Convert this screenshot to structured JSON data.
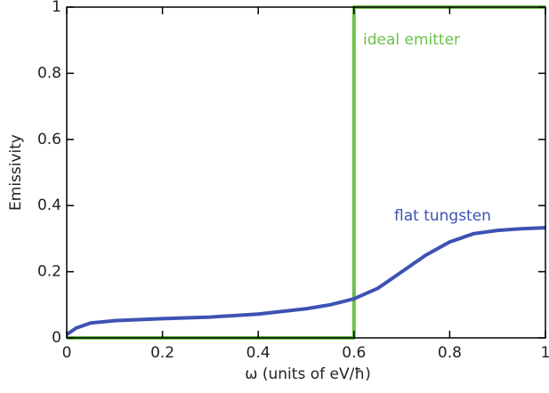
{
  "chart_data": {
    "type": "line",
    "xlabel": "ω (units of eV/ħ)",
    "ylabel": "Emissivity",
    "xlim": [
      0,
      1
    ],
    "ylim": [
      0,
      1
    ],
    "xticks": [
      0,
      0.2,
      0.4,
      0.6,
      0.8,
      1
    ],
    "yticks": [
      0,
      0.2,
      0.4,
      0.6,
      0.8,
      1
    ],
    "series": [
      {
        "name": "ideal emitter",
        "color": "#6cc04a",
        "x": [
          0,
          0.6,
          0.6,
          1
        ],
        "values": [
          0,
          0,
          1,
          1
        ]
      },
      {
        "name": "flat tungsten",
        "color": "#3d52b4",
        "x": [
          0,
          0.02,
          0.05,
          0.1,
          0.2,
          0.3,
          0.4,
          0.5,
          0.55,
          0.6,
          0.65,
          0.7,
          0.75,
          0.8,
          0.85,
          0.9,
          0.95,
          1
        ],
        "values": [
          0.01,
          0.03,
          0.045,
          0.052,
          0.058,
          0.063,
          0.072,
          0.088,
          0.1,
          0.118,
          0.15,
          0.2,
          0.25,
          0.29,
          0.315,
          0.325,
          0.33,
          0.333
        ]
      }
    ]
  }
}
